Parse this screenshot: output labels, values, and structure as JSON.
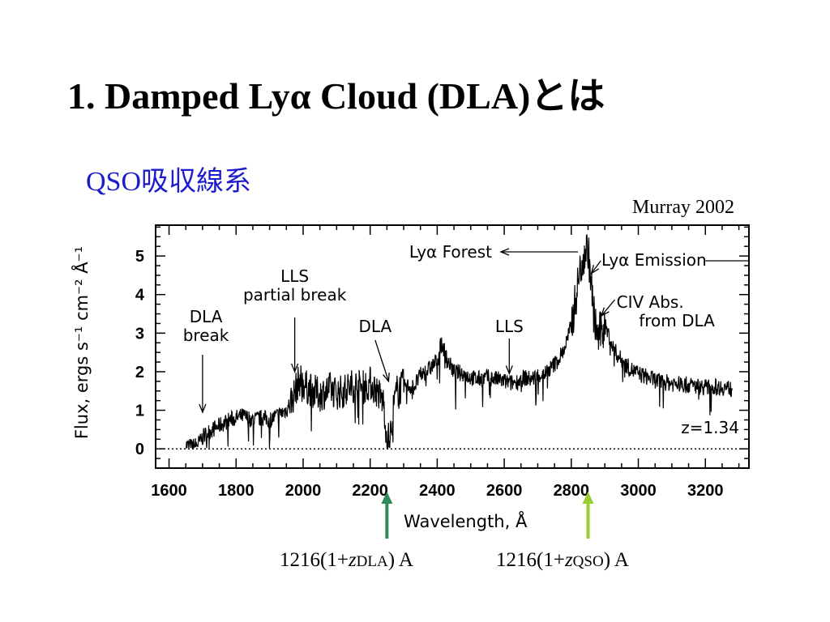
{
  "slide": {
    "title": "1. Damped Lyα Cloud (DLA)とは",
    "subtitle": "QSO吸収線系",
    "citation": "Murray 2002"
  },
  "markers": [
    {
      "prefix": "1216(1+",
      "var": "z",
      "sub": "DLA",
      "suffix": ") A",
      "wavelength": 2250,
      "color": "#2e8b57"
    },
    {
      "prefix": "1216(1+",
      "var": "z",
      "sub": "QSO",
      "suffix": ") A",
      "wavelength": 2850,
      "color": "#9acd32"
    }
  ],
  "chart_data": {
    "type": "line",
    "xlabel": "Wavelength, Å",
    "ylabel": "Flux, ergs s⁻¹ cm⁻² Å⁻¹",
    "xlim": [
      1560,
      3330
    ],
    "ylim": [
      -0.5,
      5.8
    ],
    "xticks": [
      1600,
      1800,
      2000,
      2200,
      2400,
      2600,
      2800,
      3000,
      3200
    ],
    "yticks": [
      0,
      1,
      2,
      3,
      4,
      5
    ],
    "zero_line": true,
    "redshift_label": "z=1.34",
    "series": [
      {
        "x": [
          1650,
          1670,
          1690,
          1700,
          1720,
          1750,
          1780,
          1800,
          1820,
          1850,
          1880,
          1900,
          1930,
          1950,
          1970,
          1980,
          1990,
          2000,
          2010,
          2030,
          2050,
          2080,
          2100,
          2120,
          2150,
          2180,
          2200,
          2220,
          2240,
          2250,
          2260,
          2270,
          2280,
          2300,
          2330,
          2350,
          2380,
          2400,
          2410,
          2420,
          2430,
          2450,
          2480,
          2500,
          2520,
          2550,
          2580,
          2600,
          2620,
          2640,
          2660,
          2680,
          2700,
          2720,
          2740,
          2760,
          2780,
          2800,
          2810,
          2820,
          2830,
          2840,
          2850,
          2860,
          2870,
          2880,
          2890,
          2900,
          2910,
          2920,
          2940,
          2960,
          2980,
          3000,
          3030,
          3060,
          3100,
          3150,
          3200,
          3250,
          3280
        ],
        "y": [
          0.1,
          0.05,
          0.15,
          0.3,
          0.45,
          0.6,
          0.75,
          0.8,
          0.85,
          0.75,
          0.8,
          0.75,
          0.9,
          1.0,
          1.35,
          1.6,
          1.8,
          1.7,
          1.6,
          1.5,
          1.4,
          1.55,
          1.45,
          1.5,
          1.65,
          1.6,
          1.7,
          1.5,
          1.2,
          0.25,
          0.3,
          1.1,
          1.5,
          1.65,
          1.6,
          1.9,
          2.1,
          2.3,
          2.7,
          2.6,
          2.3,
          2.0,
          1.95,
          1.85,
          1.8,
          1.85,
          1.8,
          1.75,
          1.7,
          1.75,
          1.85,
          1.8,
          1.9,
          1.95,
          2.1,
          2.3,
          2.6,
          3.2,
          3.7,
          4.3,
          4.8,
          5.1,
          5.2,
          4.2,
          3.3,
          2.9,
          3.1,
          3.2,
          3.0,
          2.7,
          2.4,
          2.2,
          2.05,
          1.95,
          1.85,
          1.75,
          1.7,
          1.65,
          1.6,
          1.6,
          1.55
        ]
      }
    ],
    "annotations": [
      {
        "lines": [
          "DLA",
          "break"
        ],
        "arrow_to": [
          1700,
          0.95
        ]
      },
      {
        "lines": [
          "LLS",
          "partial break"
        ],
        "arrow_to": [
          1975,
          2.0
        ]
      },
      {
        "lines": [
          "DLA"
        ],
        "arrow_to": [
          2255,
          1.75
        ]
      },
      {
        "lines": [
          "LLS"
        ],
        "arrow_to": [
          2615,
          1.95
        ]
      },
      {
        "lines": [
          "Lyα Forest"
        ],
        "arrow_left_to": 2410
      },
      {
        "lines": [
          "Lyα Emission"
        ],
        "arrow_to": [
          2860,
          4.55
        ]
      },
      {
        "lines": [
          "CIV Abs.",
          "from DLA"
        ],
        "arrow_to": [
          2890,
          3.45
        ]
      }
    ]
  }
}
